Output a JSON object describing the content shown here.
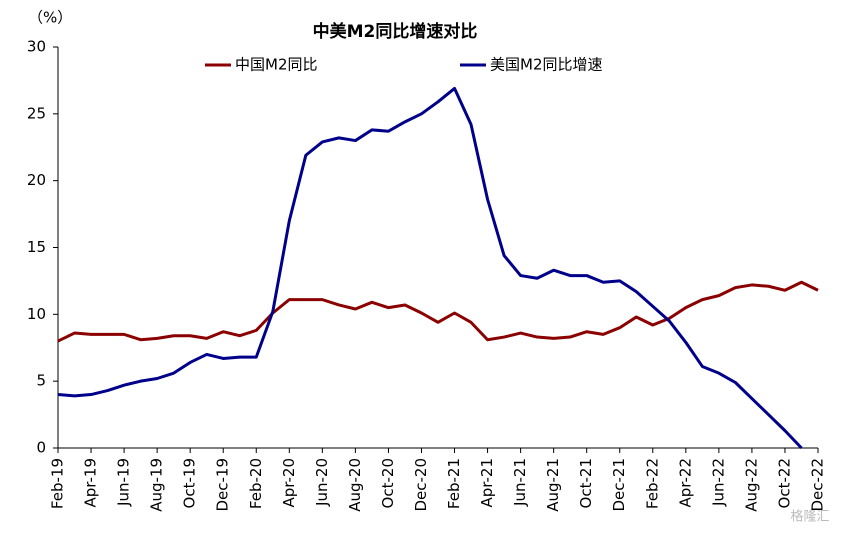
{
  "chart_data": {
    "type": "line",
    "title": "中美M2同比增速对比",
    "y_label": "（%）",
    "watermark": "格隆汇",
    "categories": [
      "Feb-19",
      null,
      "Apr-19",
      null,
      "Jun-19",
      null,
      "Aug-19",
      null,
      "Oct-19",
      null,
      "Dec-19",
      null,
      "Feb-20",
      null,
      "Apr-20",
      null,
      "Jun-20",
      null,
      "Aug-20",
      null,
      "Oct-20",
      null,
      "Dec-20",
      null,
      "Feb-21",
      null,
      "Apr-21",
      null,
      "Jun-21",
      null,
      "Aug-21",
      null,
      "Oct-21",
      null,
      "Dec-21",
      null,
      "Feb-22",
      null,
      "Apr-22",
      null,
      "Jun-22",
      null,
      "Aug-22",
      null,
      "Oct-22",
      null,
      "Dec-22"
    ],
    "series": [
      {
        "name": "中国M2同比",
        "color": "#8b0000",
        "values": [
          8.0,
          8.6,
          8.5,
          8.5,
          8.5,
          8.1,
          8.2,
          8.4,
          8.4,
          8.2,
          8.7,
          8.4,
          8.8,
          10.1,
          11.1,
          11.1,
          11.1,
          10.7,
          10.4,
          10.9,
          10.5,
          10.7,
          10.1,
          9.4,
          10.1,
          9.4,
          8.1,
          8.3,
          8.6,
          8.3,
          8.2,
          8.3,
          8.7,
          8.5,
          9.0,
          9.8,
          9.2,
          9.7,
          10.5,
          11.1,
          11.4,
          12.0,
          12.2,
          12.1,
          11.8,
          12.4,
          11.8
        ]
      },
      {
        "name": "美国M2同比增速",
        "color": "#00008b",
        "values": [
          4.0,
          3.9,
          4.0,
          4.3,
          4.7,
          5.0,
          5.2,
          5.6,
          6.4,
          7.0,
          6.7,
          6.8,
          6.8,
          10.2,
          17.0,
          21.9,
          22.9,
          23.2,
          23.0,
          23.8,
          23.7,
          24.4,
          25.0,
          25.9,
          26.9,
          24.2,
          18.6,
          14.4,
          12.9,
          12.7,
          13.3,
          12.9,
          12.9,
          12.4,
          12.5,
          11.7,
          10.6,
          9.5,
          7.9,
          6.1,
          5.6,
          4.9,
          3.7,
          2.5,
          1.3,
          0.0,
          null
        ]
      }
    ],
    "ylim": [
      0,
      30
    ],
    "yticks": [
      0,
      5,
      10,
      15,
      20,
      25,
      30
    ],
    "grid": false
  }
}
